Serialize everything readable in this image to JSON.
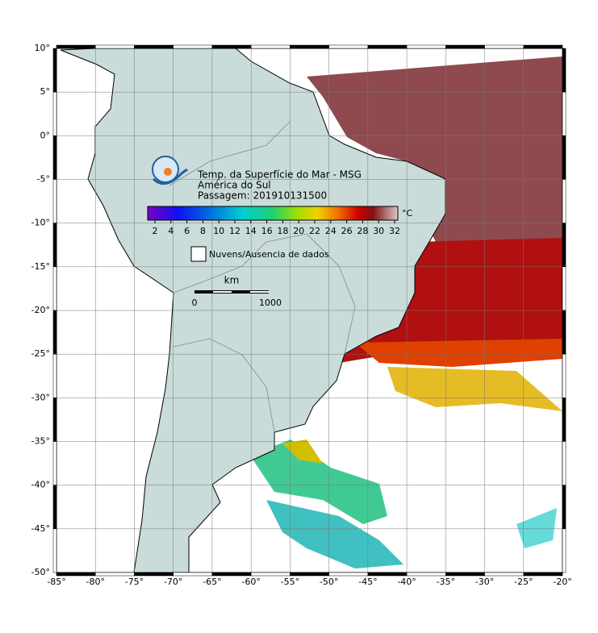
{
  "map": {
    "title_lines": [
      "Temp. da Superfície do Mar - MSG",
      "América do Sul",
      "Passagem: 201910131500"
    ],
    "colorbar": {
      "unit": "°C",
      "labels": [
        "2",
        "4",
        "6",
        "8",
        "10",
        "12",
        "14",
        "16",
        "18",
        "20",
        "22",
        "24",
        "26",
        "28",
        "30",
        "32"
      ]
    },
    "legend": "Nuvens/Ausencia de dados",
    "scale_bar": {
      "unit": "km",
      "start": "0",
      "end": "1000"
    },
    "lat_labels": [
      "10°",
      "5°",
      "0°",
      "-5°",
      "-10°",
      "-15°",
      "-20°",
      "-25°",
      "-30°",
      "-35°",
      "-40°",
      "-45°",
      "-50°"
    ],
    "lon_labels": [
      "-85°",
      "-80°",
      "-75°",
      "-70°",
      "-65°",
      "-60°",
      "-55°",
      "-50°",
      "-45°",
      "-40°",
      "-35°",
      "-30°",
      "-25°",
      "-20°"
    ]
  }
}
